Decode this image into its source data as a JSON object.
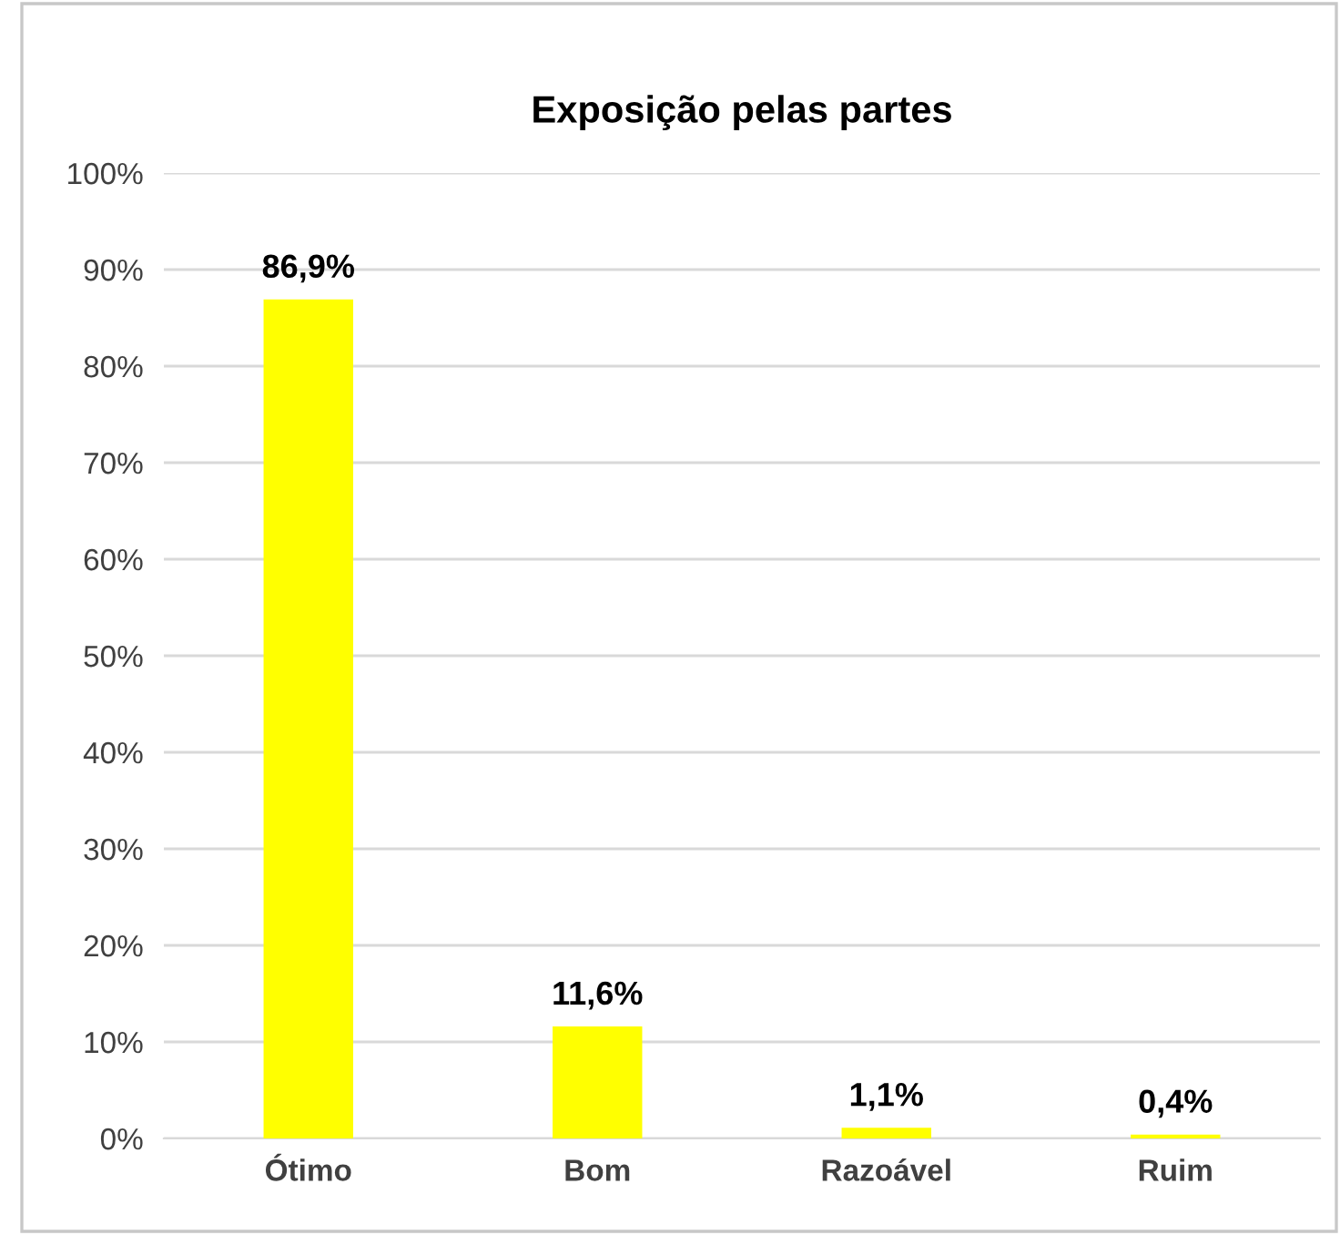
{
  "chart_data": {
    "type": "bar",
    "title": "Exposição pelas partes",
    "categories": [
      "Ótimo",
      "Bom",
      "Razoável",
      "Ruim"
    ],
    "values": [
      86.9,
      11.6,
      1.1,
      0.4
    ],
    "value_labels": [
      "86,9%",
      "11,6%",
      "1,1%",
      "0,4%"
    ],
    "color": "#ffff00",
    "ylim": [
      0,
      100
    ],
    "yticks": [
      {
        "value": 0,
        "label": "0%"
      },
      {
        "value": 10,
        "label": "10%"
      },
      {
        "value": 20,
        "label": "20%"
      },
      {
        "value": 30,
        "label": "30%"
      },
      {
        "value": 40,
        "label": "40%"
      },
      {
        "value": 50,
        "label": "50%"
      },
      {
        "value": 60,
        "label": "60%"
      },
      {
        "value": 70,
        "label": "70%"
      },
      {
        "value": 80,
        "label": "80%"
      },
      {
        "value": 90,
        "label": "90%"
      },
      {
        "value": 100,
        "label": "100%"
      }
    ],
    "grid": "y",
    "legend": false
  }
}
